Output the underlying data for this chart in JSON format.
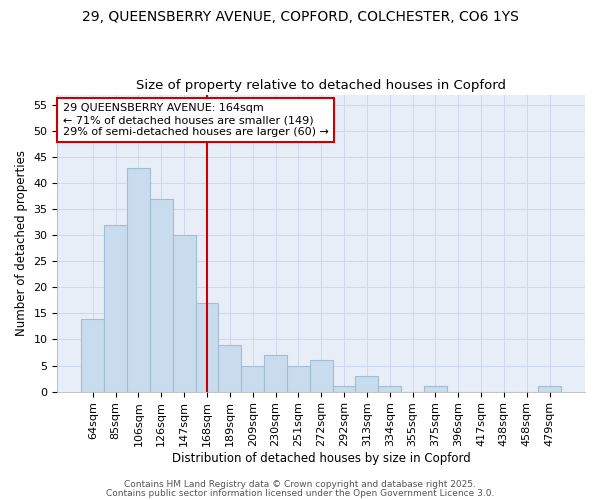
{
  "title1": "29, QUEENSBERRY AVENUE, COPFORD, COLCHESTER, CO6 1YS",
  "title2": "Size of property relative to detached houses in Copford",
  "xlabel": "Distribution of detached houses by size in Copford",
  "ylabel": "Number of detached properties",
  "categories": [
    "64sqm",
    "85sqm",
    "106sqm",
    "126sqm",
    "147sqm",
    "168sqm",
    "189sqm",
    "209sqm",
    "230sqm",
    "251sqm",
    "272sqm",
    "292sqm",
    "313sqm",
    "334sqm",
    "355sqm",
    "375sqm",
    "396sqm",
    "417sqm",
    "438sqm",
    "458sqm",
    "479sqm"
  ],
  "values": [
    14,
    32,
    43,
    37,
    30,
    17,
    9,
    5,
    7,
    5,
    6,
    1,
    3,
    1,
    0,
    1,
    0,
    0,
    0,
    0,
    1
  ],
  "bar_color": "#c9dcee",
  "bar_edge_color": "#a0bdd4",
  "vline_x": 5.0,
  "vline_color": "#cc0000",
  "annotation_text": "29 QUEENSBERRY AVENUE: 164sqm\n← 71% of detached houses are smaller (149)\n29% of semi-detached houses are larger (60) →",
  "annotation_box_color": "#ffffff",
  "annotation_box_edge": "#cc0000",
  "ylim": [
    0,
    57
  ],
  "yticks": [
    0,
    5,
    10,
    15,
    20,
    25,
    30,
    35,
    40,
    45,
    50,
    55
  ],
  "background_color": "#ffffff",
  "plot_bg_color": "#e8eef8",
  "grid_color": "#c8d4e8",
  "footer1": "Contains HM Land Registry data © Crown copyright and database right 2025.",
  "footer2": "Contains public sector information licensed under the Open Government Licence 3.0.",
  "title1_fontsize": 10,
  "title2_fontsize": 9.5,
  "annot_fontsize": 8,
  "ylabel_fontsize": 8.5,
  "xlabel_fontsize": 8.5,
  "tick_fontsize": 8,
  "footer_fontsize": 6.5
}
